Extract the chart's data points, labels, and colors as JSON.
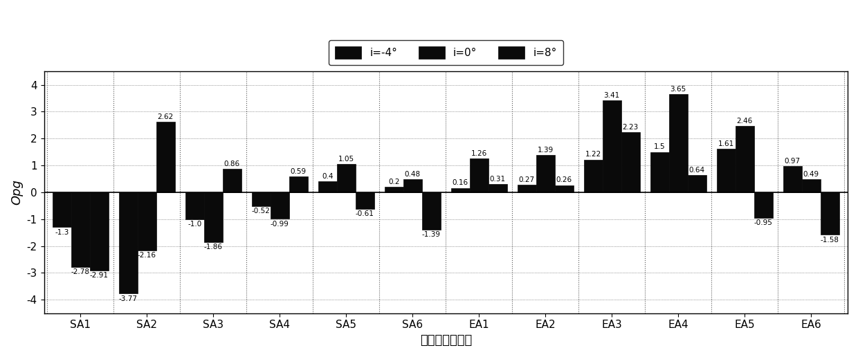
{
  "categories": [
    "SA1",
    "SA2",
    "SA3",
    "SA4",
    "SA5",
    "SA6",
    "EA1",
    "EA2",
    "EA3",
    "EA4",
    "EA5",
    "EA6"
  ],
  "series": {
    "i=-4": [
      -1.3,
      -3.77,
      -1.0,
      -0.52,
      0.4,
      0.2,
      0.16,
      0.27,
      1.22,
      1.5,
      1.61,
      0.97
    ],
    "i=0": [
      -2.78,
      -2.16,
      -1.86,
      -0.99,
      1.05,
      0.48,
      1.26,
      1.39,
      3.41,
      3.65,
      2.46,
      0.49
    ],
    "i=8": [
      -2.91,
      2.62,
      0.86,
      0.59,
      -0.61,
      -1.39,
      0.31,
      0.26,
      2.23,
      0.64,
      -0.95,
      -1.58
    ]
  },
  "legend_labels": [
    "i=-4°",
    "i=0°",
    "i=8°"
  ],
  "bar_colors": [
    "#0a0a0a",
    "#0a0a0a",
    "#0a0a0a"
  ],
  "bar_edge_colors": [
    "#0a0a0a",
    "#0a0a0a",
    "#0a0a0a"
  ],
  "xlabel": "等离子体激励器",
  "ylabel": "Opg",
  "ylim": [
    -4.5,
    4.5
  ],
  "yticks": [
    -4,
    -3,
    -2,
    -1,
    0,
    1,
    2,
    3,
    4
  ],
  "bar_width": 0.28,
  "background_color": "#ffffff",
  "grid_color": "#555555",
  "font_size_label": 13,
  "font_size_tick": 11,
  "font_size_annot": 7.5
}
